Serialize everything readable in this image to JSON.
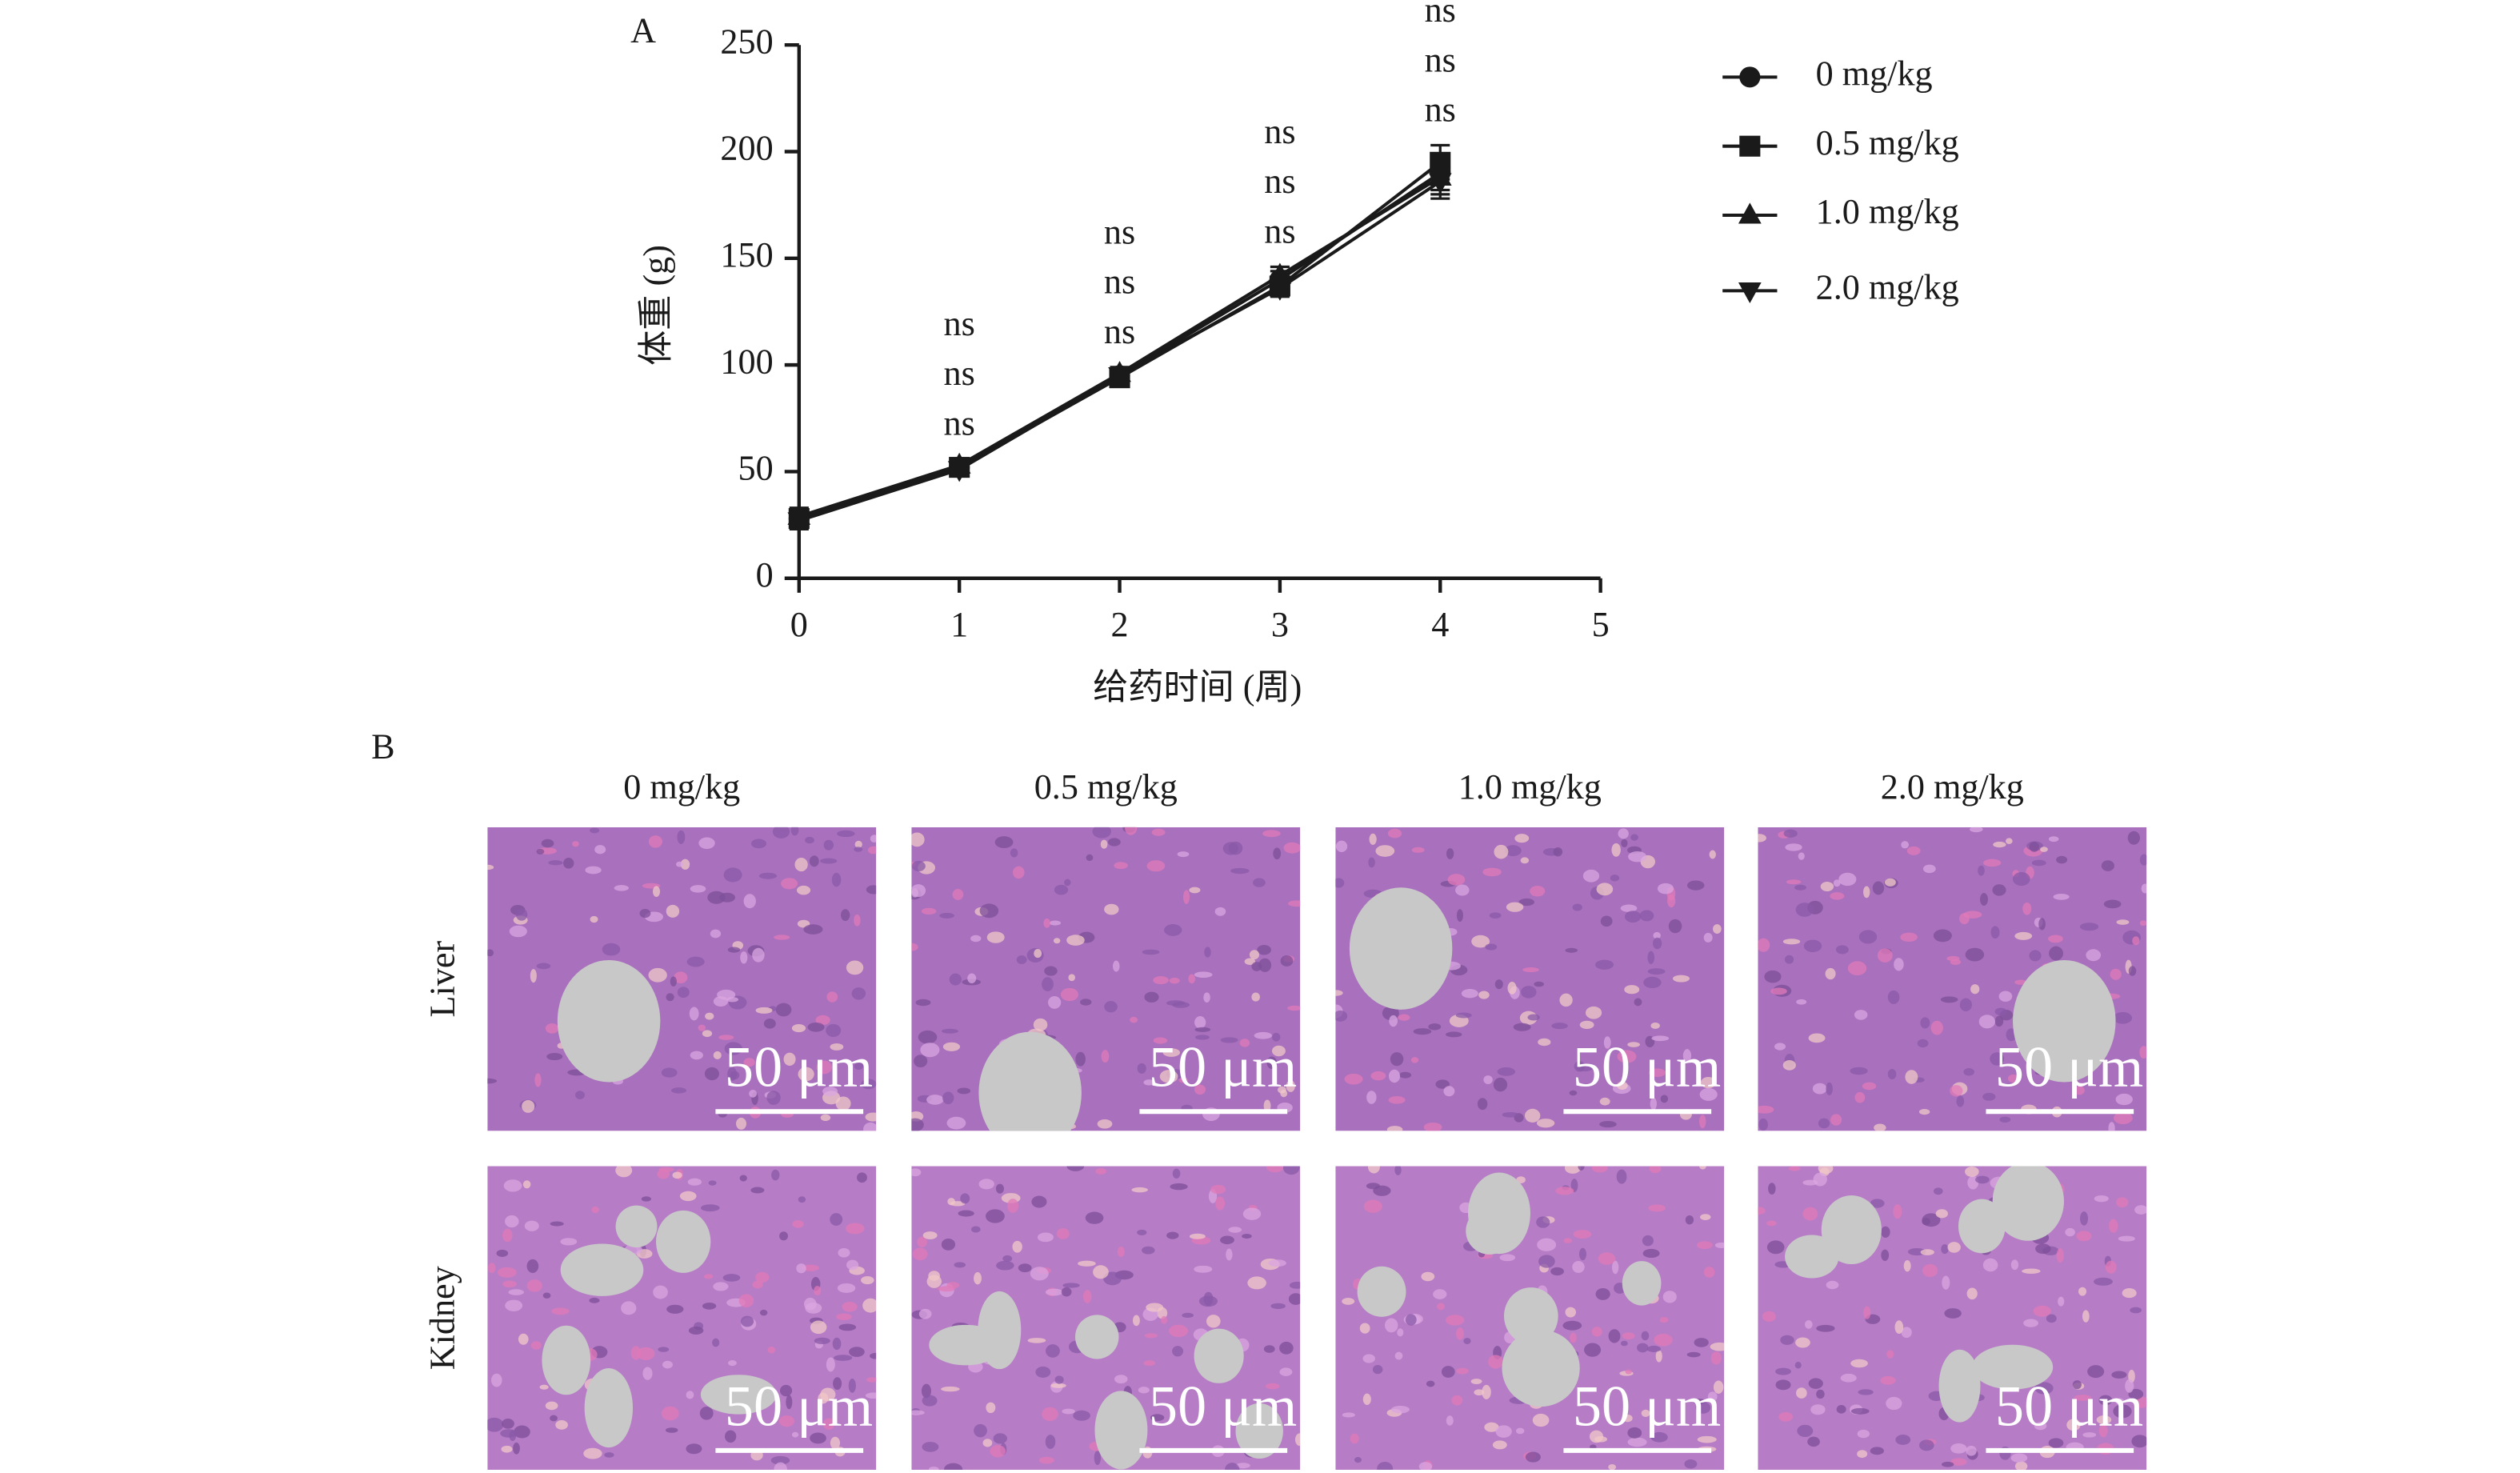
{
  "panel_a_label": "A",
  "panel_b_label": "B",
  "chart_data": {
    "type": "line",
    "xlabel": "给药时间 (周)",
    "ylabel": "体重 (g)",
    "x": [
      0,
      1,
      2,
      3,
      4
    ],
    "xlim": [
      0,
      5
    ],
    "xticks": [
      0,
      1,
      2,
      3,
      4,
      5
    ],
    "ylim": [
      0,
      250
    ],
    "yticks": [
      0,
      50,
      100,
      150,
      200,
      250
    ],
    "legend": "right",
    "series": [
      {
        "name": "0 mg/kg",
        "color": "#1a1a1a",
        "marker": "circle",
        "values": [
          28,
          52,
          95,
          140,
          190
        ],
        "errors": [
          4,
          3,
          3,
          4,
          8
        ]
      },
      {
        "name": "0.5 mg/kg",
        "color": "#1a1a1a",
        "marker": "square",
        "values": [
          28,
          52,
          94,
          137,
          195
        ],
        "errors": [
          4,
          3,
          3,
          4,
          8
        ]
      },
      {
        "name": "1.0 mg/kg",
        "color": "#1a1a1a",
        "marker": "triangle-up",
        "values": [
          29,
          53,
          96,
          142,
          188
        ],
        "errors": [
          4,
          3,
          3,
          4,
          8
        ]
      },
      {
        "name": "2.0 mg/kg",
        "color": "#1a1a1a",
        "marker": "triangle-down",
        "values": [
          27,
          51,
          95,
          136,
          186
        ],
        "errors": [
          4,
          3,
          3,
          4,
          8
        ]
      }
    ],
    "annotations": [
      {
        "x": 1,
        "text": [
          "ns",
          "ns",
          "ns"
        ]
      },
      {
        "x": 2,
        "text": [
          "ns",
          "ns",
          "ns"
        ]
      },
      {
        "x": 3,
        "text": [
          "ns",
          "ns",
          "ns"
        ]
      },
      {
        "x": 4,
        "text": [
          "ns",
          "ns",
          "ns"
        ]
      }
    ]
  },
  "histology": {
    "columns": [
      "0 mg/kg",
      "0.5 mg/kg",
      "1.0 mg/kg",
      "2.0 mg/kg"
    ],
    "rows": [
      "Liver",
      "Kidney"
    ],
    "scale_bar_label": "50 μm"
  }
}
